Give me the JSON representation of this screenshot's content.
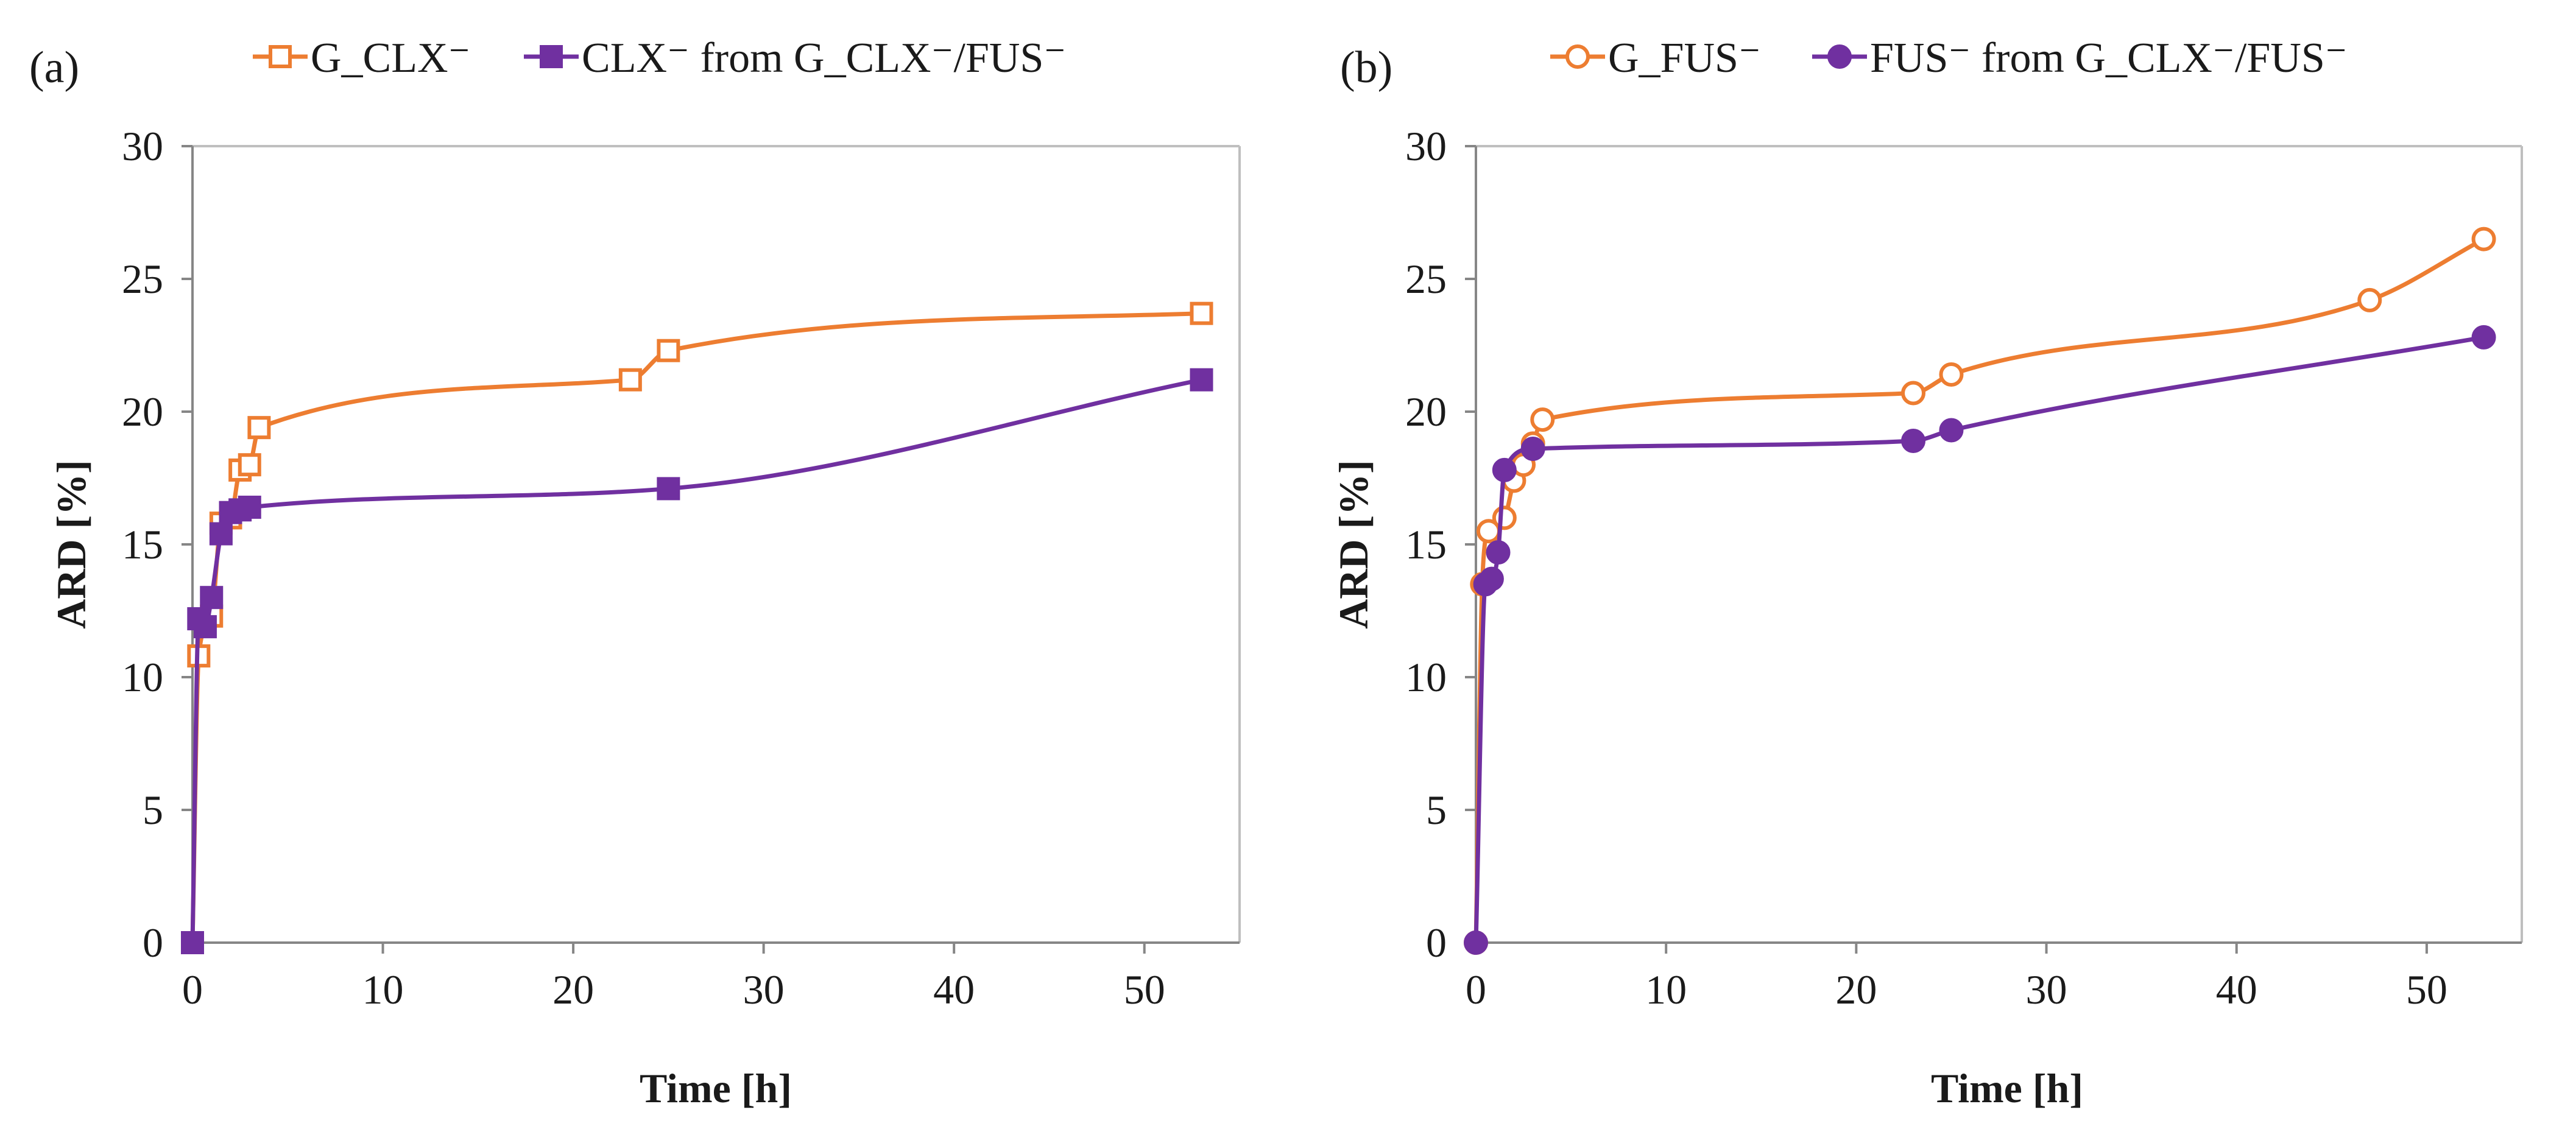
{
  "figure": {
    "panels": [
      "(a)",
      "(b)"
    ]
  },
  "colors": {
    "orange": "#ED7D31",
    "purple": "#7030A0",
    "axis": "#868686",
    "frame": "#bfbfbf"
  },
  "chart_data": [
    {
      "type": "line",
      "panel_label": "(a)",
      "xlabel": "Time [h]",
      "ylabel": "ARD [%]",
      "xlim": [
        0,
        55
      ],
      "ylim": [
        0,
        30
      ],
      "xticks": [
        0,
        10,
        20,
        30,
        40,
        50
      ],
      "yticks": [
        0,
        5,
        10,
        15,
        20,
        25,
        30
      ],
      "legend_position": "top",
      "series": [
        {
          "name": "G_CLX⁻",
          "color": "#ED7D31",
          "marker": "square-open",
          "x": [
            0,
            0.33,
            1,
            1.5,
            2,
            2.5,
            3,
            3.5,
            23,
            25,
            53
          ],
          "y": [
            0,
            10.8,
            12.3,
            15.8,
            16.0,
            17.8,
            18.0,
            19.4,
            21.2,
            22.3,
            23.7
          ]
        },
        {
          "name": "CLX⁻ from G_CLX⁻/FUS⁻",
          "color": "#7030A0",
          "marker": "square-filled",
          "x": [
            0,
            0.33,
            0.67,
            1,
            1.5,
            2,
            2.5,
            3,
            25,
            53
          ],
          "y": [
            0,
            12.2,
            11.9,
            13.0,
            15.4,
            16.2,
            16.3,
            16.4,
            17.1,
            21.2
          ]
        }
      ]
    },
    {
      "type": "line",
      "panel_label": "(b)",
      "xlabel": "Time [h]",
      "ylabel": "ARD [%]",
      "xlim": [
        0,
        55
      ],
      "ylim": [
        0,
        30
      ],
      "xticks": [
        0,
        10,
        20,
        30,
        40,
        50
      ],
      "yticks": [
        0,
        5,
        10,
        15,
        20,
        25,
        30
      ],
      "legend_position": "top",
      "series": [
        {
          "name": "G_FUS⁻",
          "color": "#ED7D31",
          "marker": "circle-open",
          "x": [
            0,
            0.33,
            0.67,
            1.5,
            2,
            2.5,
            3,
            3.5,
            23,
            25,
            47,
            53
          ],
          "y": [
            0,
            13.5,
            15.5,
            16.0,
            17.4,
            18.0,
            18.8,
            19.7,
            20.7,
            21.4,
            24.2,
            26.5
          ]
        },
        {
          "name": "FUS⁻ from G_CLX⁻/FUS⁻",
          "color": "#7030A0",
          "marker": "circle-filled",
          "x": [
            0,
            0.5,
            0.83,
            1.17,
            1.5,
            3,
            23,
            25,
            53
          ],
          "y": [
            0,
            13.5,
            13.7,
            14.7,
            17.8,
            18.6,
            18.9,
            19.3,
            22.8
          ]
        }
      ]
    }
  ]
}
